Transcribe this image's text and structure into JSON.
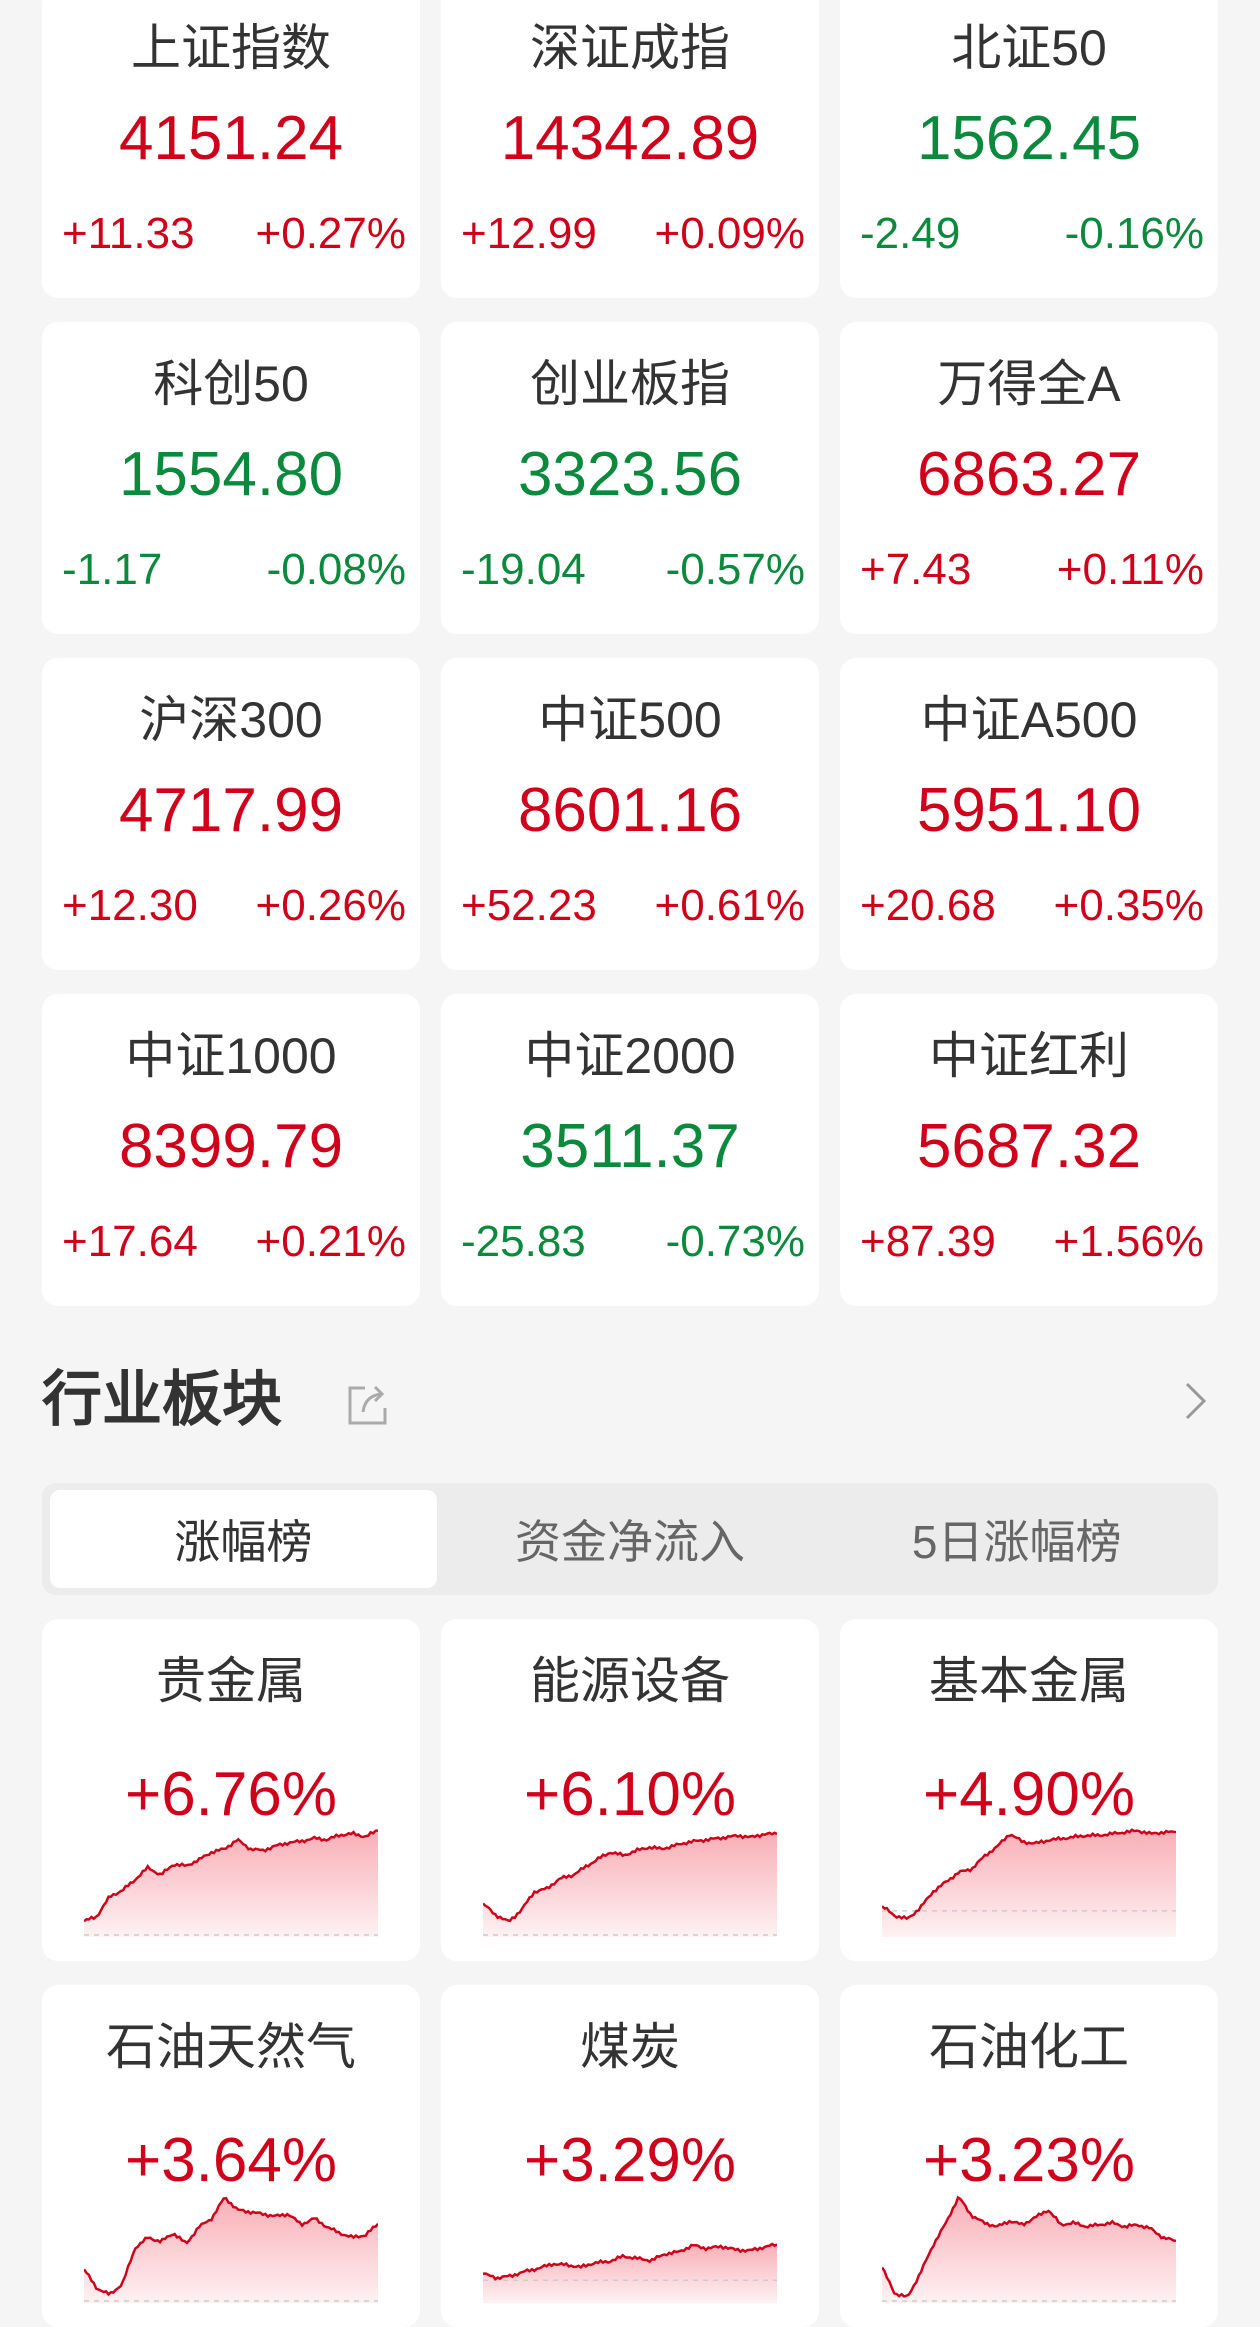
{
  "colors": {
    "up": "#d0021b",
    "down": "#0b8a3e",
    "fill": "#f7a6ae"
  },
  "indices": [
    {
      "name": "上证指数",
      "price": "4151.24",
      "change": "+11.33",
      "pct": "+0.27%",
      "dir": "up"
    },
    {
      "name": "深证成指",
      "price": "14342.89",
      "change": "+12.99",
      "pct": "+0.09%",
      "dir": "up"
    },
    {
      "name": "北证50",
      "price": "1562.45",
      "change": "-2.49",
      "pct": "-0.16%",
      "dir": "down"
    },
    {
      "name": "科创50",
      "price": "1554.80",
      "change": "-1.17",
      "pct": "-0.08%",
      "dir": "down"
    },
    {
      "name": "创业板指",
      "price": "3323.56",
      "change": "-19.04",
      "pct": "-0.57%",
      "dir": "down"
    },
    {
      "name": "万得全A",
      "price": "6863.27",
      "change": "+7.43",
      "pct": "+0.11%",
      "dir": "up"
    },
    {
      "name": "沪深300",
      "price": "4717.99",
      "change": "+12.30",
      "pct": "+0.26%",
      "dir": "up"
    },
    {
      "name": "中证500",
      "price": "8601.16",
      "change": "+52.23",
      "pct": "+0.61%",
      "dir": "up"
    },
    {
      "name": "中证A500",
      "price": "5951.10",
      "change": "+20.68",
      "pct": "+0.35%",
      "dir": "up"
    },
    {
      "name": "中证1000",
      "price": "8399.79",
      "change": "+17.64",
      "pct": "+0.21%",
      "dir": "up"
    },
    {
      "name": "中证2000",
      "price": "3511.37",
      "change": "-25.83",
      "pct": "-0.73%",
      "dir": "down"
    },
    {
      "name": "中证红利",
      "price": "5687.32",
      "change": "+87.39",
      "pct": "+1.56%",
      "dir": "up"
    }
  ],
  "section": {
    "title": "行业板块",
    "share_icon": "share-icon",
    "more_icon": "chevron-right-icon"
  },
  "tabs": [
    {
      "label": "涨幅榜",
      "active": true
    },
    {
      "label": "资金净流入",
      "active": false
    },
    {
      "label": "5日涨幅榜",
      "active": false
    }
  ],
  "sectors": [
    {
      "name": "贵金属",
      "pct": "+6.76%",
      "dir": "up"
    },
    {
      "name": "能源设备",
      "pct": "+6.10%",
      "dir": "up"
    },
    {
      "name": "基本金属",
      "pct": "+4.90%",
      "dir": "up"
    },
    {
      "name": "石油天然气",
      "pct": "+3.64%",
      "dir": "up"
    },
    {
      "name": "煤炭",
      "pct": "+3.29%",
      "dir": "up"
    },
    {
      "name": "石油化工",
      "pct": "+3.23%",
      "dir": "up"
    }
  ],
  "chart_data": [
    {
      "type": "area",
      "ylim": [
        0,
        6.9
      ],
      "baseline": 0,
      "values": [
        0.9,
        1.2,
        2.5,
        2.9,
        3.6,
        4.4,
        3.9,
        4.6,
        4.5,
        4.9,
        5.4,
        5.6,
        6.2,
        5.6,
        5.5,
        5.8,
        6.0,
        6.1,
        6.3,
        6.2,
        6.5,
        6.6,
        6.4,
        6.8
      ]
    },
    {
      "type": "area",
      "ylim": [
        0,
        6.4
      ],
      "baseline": 0,
      "values": [
        1.9,
        1.2,
        0.8,
        1.5,
        2.6,
        2.8,
        3.4,
        3.6,
        4.1,
        4.6,
        5.0,
        4.8,
        5.1,
        5.3,
        5.2,
        5.4,
        5.6,
        5.7,
        5.8,
        5.9,
        6.0,
        5.9,
        6.1,
        6.1
      ]
    },
    {
      "type": "area",
      "ylim": [
        -1.5,
        5.1
      ],
      "baseline": 0,
      "values": [
        0.3,
        -0.3,
        -0.5,
        0.2,
        1.2,
        1.8,
        2.4,
        2.6,
        3.4,
        4.0,
        4.8,
        4.3,
        4.2,
        4.4,
        4.5,
        4.6,
        4.7,
        4.7,
        4.8,
        4.9,
        5.0,
        4.8,
        4.9,
        4.9
      ]
    },
    {
      "type": "area",
      "ylim": [
        0,
        5.0
      ],
      "baseline": 0,
      "values": [
        1.5,
        0.6,
        0.3,
        0.8,
        2.5,
        3.0,
        2.8,
        3.2,
        2.7,
        3.5,
        3.9,
        4.9,
        4.3,
        4.2,
        4.1,
        4.0,
        4.1,
        3.6,
        3.9,
        3.5,
        3.2,
        3.0,
        3.1,
        3.64
      ]
    },
    {
      "type": "area",
      "ylim": [
        -1.9,
        7.8
      ],
      "baseline": 0,
      "values": [
        0.6,
        0.2,
        0.4,
        0.8,
        1.1,
        1.5,
        1.4,
        1.2,
        1.6,
        1.7,
        2.2,
        2.0,
        1.8,
        2.4,
        2.6,
        3.2,
        2.9,
        3.1,
        2.8,
        2.7,
        3.0,
        3.29
      ]
    },
    {
      "type": "area",
      "ylim": [
        0,
        5.7
      ],
      "baseline": 0,
      "values": [
        1.8,
        0.4,
        0.2,
        1.5,
        3.0,
        4.2,
        5.6,
        4.6,
        4.2,
        4.0,
        4.3,
        4.1,
        4.5,
        4.9,
        4.1,
        4.2,
        4.0,
        4.1,
        4.2,
        4.0,
        4.1,
        3.9,
        3.4,
        3.23
      ]
    }
  ]
}
